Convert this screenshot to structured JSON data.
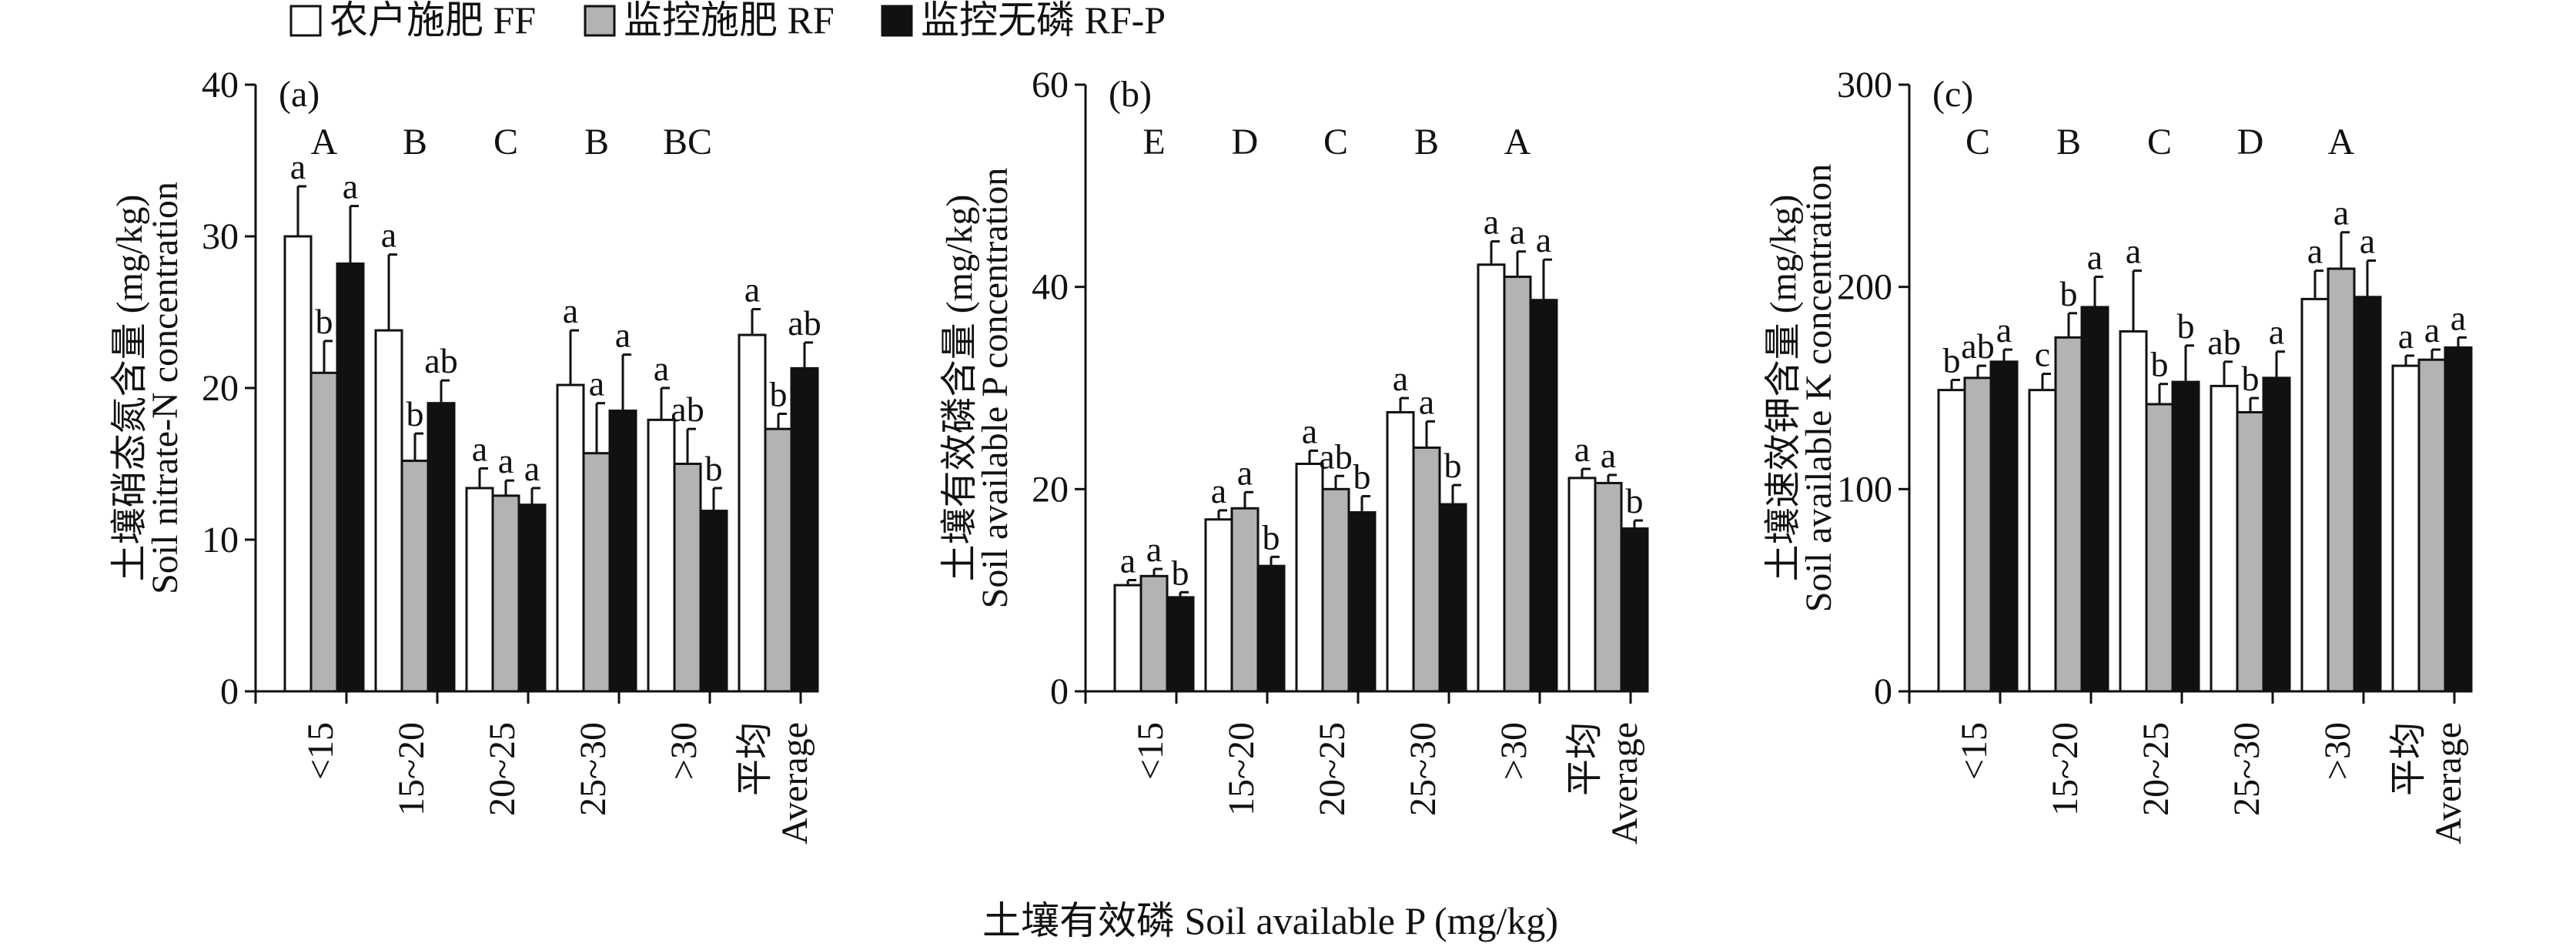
{
  "legend": {
    "items": [
      {
        "label": "农户施肥 FF",
        "color": "#ffffff"
      },
      {
        "label": "监控施肥 RF",
        "color": "#b3b3b3"
      },
      {
        "label": "监控无磷 RF-P",
        "color": "#111111"
      }
    ]
  },
  "x_title": "土壤有效磷 Soil available P (mg/kg)",
  "categories": [
    "<15",
    "15~20",
    "20~25",
    "25~30",
    ">30",
    "平均\nAverage"
  ],
  "chart_data": [
    {
      "type": "bar",
      "panel": "(a)",
      "ylabel_cn": "土壤硝态氮含量 (mg/kg)",
      "ylabel_en": "Soil nitrate-N concentration",
      "ylim": [
        0,
        40
      ],
      "yticks": [
        0,
        10,
        20,
        30,
        40
      ],
      "categories": [
        "<15",
        "15~20",
        "20~25",
        "25~30",
        ">30",
        "平均 Average"
      ],
      "group_letters": [
        "A",
        "B",
        "C",
        "B",
        "BC",
        ""
      ],
      "series": [
        {
          "name": "农户施肥 FF",
          "values": [
            30.0,
            23.8,
            13.4,
            20.2,
            17.9,
            23.5
          ],
          "errors": [
            3.3,
            5.0,
            1.3,
            3.6,
            2.1,
            1.7
          ],
          "letters": [
            "a",
            "a",
            "a",
            "a",
            "a",
            "a"
          ]
        },
        {
          "name": "监控施肥 RF",
          "values": [
            21.0,
            15.2,
            12.9,
            15.7,
            15.0,
            17.3
          ],
          "errors": [
            2.1,
            1.8,
            1.0,
            3.3,
            2.3,
            1.0
          ],
          "letters": [
            "b",
            "b",
            "a",
            "a",
            "ab",
            "b"
          ]
        },
        {
          "name": "监控无磷 RF-P",
          "values": [
            28.2,
            19.0,
            12.3,
            18.5,
            11.9,
            21.3
          ],
          "errors": [
            3.8,
            1.5,
            1.1,
            3.7,
            1.5,
            1.7
          ],
          "letters": [
            "a",
            "ab",
            "a",
            "a",
            "b",
            "ab"
          ]
        }
      ]
    },
    {
      "type": "bar",
      "panel": "(b)",
      "ylabel_cn": "土壤有效磷含量 (mg/kg)",
      "ylabel_en": "Soil available P concentration",
      "ylim": [
        0,
        60
      ],
      "yticks": [
        0,
        20,
        40,
        60
      ],
      "categories": [
        "<15",
        "15~20",
        "20~25",
        "25~30",
        ">30",
        "平均 Average"
      ],
      "group_letters": [
        "E",
        "D",
        "C",
        "B",
        "A",
        ""
      ],
      "series": [
        {
          "name": "农户施肥 FF",
          "values": [
            10.5,
            17.0,
            22.5,
            27.6,
            42.2,
            21.1
          ],
          "errors": [
            0.5,
            0.9,
            1.3,
            1.4,
            2.3,
            0.9
          ],
          "letters": [
            "a",
            "a",
            "a",
            "a",
            "a",
            "a"
          ]
        },
        {
          "name": "监控施肥 RF",
          "values": [
            11.4,
            18.1,
            20.0,
            24.1,
            41.0,
            20.6
          ],
          "errors": [
            0.7,
            1.6,
            1.3,
            2.6,
            2.5,
            0.8
          ],
          "letters": [
            "a",
            "a",
            "ab",
            "a",
            "a",
            "a"
          ]
        },
        {
          "name": "监控无磷 RF-P",
          "values": [
            9.3,
            12.4,
            17.7,
            18.5,
            38.7,
            16.1
          ],
          "errors": [
            0.5,
            0.9,
            1.6,
            1.9,
            4.0,
            0.8
          ],
          "letters": [
            "b",
            "b",
            "b",
            "b",
            "a",
            "b"
          ]
        }
      ]
    },
    {
      "type": "bar",
      "panel": "(c)",
      "ylabel_cn": "土壤速效钾含量 (mg/kg)",
      "ylabel_en": "Soil available K concentration",
      "ylim": [
        0,
        300
      ],
      "yticks": [
        0,
        100,
        200,
        300
      ],
      "categories": [
        "<15",
        "15~20",
        "20~25",
        "25~30",
        ">30",
        "平均 Average"
      ],
      "group_letters": [
        "C",
        "B",
        "C",
        "D",
        "A",
        ""
      ],
      "series": [
        {
          "name": "农户施肥 FF",
          "values": [
            149,
            149,
            178,
            151,
            194,
            161
          ],
          "errors": [
            5,
            8,
            30,
            12,
            14,
            5
          ],
          "letters": [
            "b",
            "c",
            "a",
            "ab",
            "a",
            "a"
          ]
        },
        {
          "name": "监控施肥 RF",
          "values": [
            155,
            175,
            142,
            138,
            209,
            164
          ],
          "errors": [
            6,
            12,
            10,
            7,
            18,
            5
          ],
          "letters": [
            "ab",
            "b",
            "b",
            "b",
            "a",
            "a"
          ]
        },
        {
          "name": "监控无磷 RF-P",
          "values": [
            163,
            190,
            153,
            155,
            195,
            170
          ],
          "errors": [
            6,
            15,
            18,
            13,
            18,
            5
          ],
          "letters": [
            "a",
            "a",
            "b",
            "a",
            "a",
            "a"
          ]
        }
      ]
    }
  ]
}
